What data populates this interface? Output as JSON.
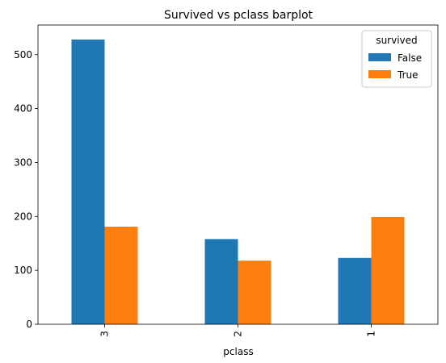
{
  "chart_data": {
    "type": "bar",
    "title": "Survived vs pclass barplot",
    "xlabel": "pclass",
    "ylabel": "",
    "categories": [
      "3",
      "2",
      "1"
    ],
    "series": [
      {
        "name": "False",
        "values": [
          528,
          158,
          123
        ],
        "color": "#1f77b4"
      },
      {
        "name": "True",
        "values": [
          181,
          118,
          199
        ],
        "color": "#ff7f0e"
      }
    ],
    "ylim": [
      0,
      555
    ],
    "yticks": [
      0,
      100,
      200,
      300,
      400,
      500
    ],
    "legend": {
      "title": "survived",
      "placement": "top-right"
    },
    "grid": false,
    "xtick_rotation": 90
  }
}
